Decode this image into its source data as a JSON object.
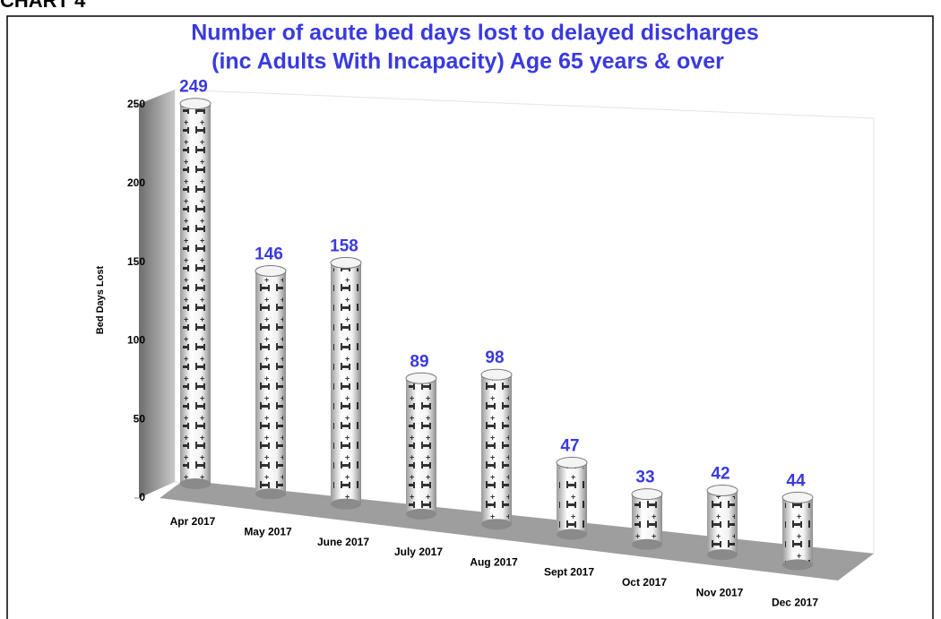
{
  "header": "CHART 4",
  "chart_data": {
    "type": "bar",
    "title": [
      "Number of  acute bed days lost to delayed discharges",
      "(inc Adults With Incapacity) Age 65 years & over"
    ],
    "y_label": "Bed Days Lost",
    "categories": [
      "Apr 2017",
      "May 2017",
      "June 2017",
      "July 2017",
      "Aug 2017",
      "Sept 2017",
      "Oct 2017",
      "Nov 2017",
      "Dec 2017"
    ],
    "values": [
      249,
      146,
      158,
      89,
      98,
      47,
      33,
      42,
      44
    ],
    "ylim": [
      0,
      250
    ],
    "yticks": [
      0,
      50,
      100,
      150,
      200,
      250
    ],
    "color": "#3a3adf"
  }
}
